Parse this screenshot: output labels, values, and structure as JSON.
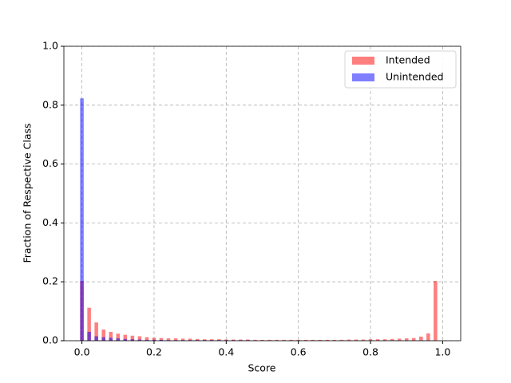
{
  "chart_data": {
    "type": "histogram",
    "xlabel": "Score",
    "ylabel": "Fraction of Respective Class",
    "bins": [
      -0.01,
      0.01,
      0.03,
      0.05,
      0.07,
      0.09,
      0.11,
      0.13,
      0.15,
      0.17,
      0.19,
      0.21,
      0.23,
      0.25,
      0.27,
      0.29,
      0.31,
      0.33,
      0.35,
      0.37,
      0.39,
      0.41,
      0.43,
      0.45,
      0.47,
      0.49,
      0.51,
      0.53,
      0.55,
      0.57,
      0.59,
      0.61,
      0.63,
      0.65,
      0.67,
      0.69,
      0.71,
      0.73,
      0.75,
      0.77,
      0.79,
      0.81,
      0.83,
      0.85,
      0.87,
      0.89,
      0.91,
      0.93,
      0.95,
      0.97,
      0.99
    ],
    "series": [
      {
        "name": "Intended",
        "color": "#ff0000",
        "values": [
          0.203,
          0.112,
          0.062,
          0.038,
          0.03,
          0.024,
          0.02,
          0.017,
          0.015,
          0.012,
          0.01,
          0.009,
          0.008,
          0.008,
          0.007,
          0.007,
          0.006,
          0.005,
          0.005,
          0.005,
          0.004,
          0.004,
          0.004,
          0.004,
          0.003,
          0.003,
          0.003,
          0.003,
          0.003,
          0.003,
          0.003,
          0.003,
          0.003,
          0.003,
          0.003,
          0.003,
          0.003,
          0.004,
          0.004,
          0.004,
          0.005,
          0.005,
          0.005,
          0.006,
          0.007,
          0.008,
          0.009,
          0.014,
          0.025,
          0.203
        ]
      },
      {
        "name": "Unintended",
        "color": "#0000ff",
        "values": [
          0.823,
          0.03,
          0.015,
          0.012,
          0.01,
          0.008,
          0.006,
          0.005,
          0.004,
          0.003,
          0.003,
          0.003,
          0.002,
          0.002,
          0.002,
          0.002,
          0.002,
          0.002,
          0.002,
          0.002,
          0.002,
          0.002,
          0.002,
          0.002,
          0.001,
          0.001,
          0.001,
          0.001,
          0.001,
          0.001,
          0.001,
          0.001,
          0.001,
          0.001,
          0.001,
          0.001,
          0.001,
          0.001,
          0.001,
          0.001,
          0.001,
          0.001,
          0.001,
          0.001,
          0.001,
          0.001,
          0.001,
          0.001,
          0.001,
          0.001
        ]
      }
    ],
    "xlim": [
      -0.05,
      1.05
    ],
    "ylim": [
      0,
      1
    ],
    "xticks": [
      {
        "value": 0,
        "label": "0.0"
      },
      {
        "value": 0.2,
        "label": "0.2"
      },
      {
        "value": 0.4,
        "label": "0.4"
      },
      {
        "value": 0.6,
        "label": "0.6"
      },
      {
        "value": 0.8,
        "label": "0.8"
      },
      {
        "value": 1,
        "label": "1.0"
      }
    ],
    "yticks": [
      {
        "value": 0,
        "label": "0.0"
      },
      {
        "value": 0.2,
        "label": "0.2"
      },
      {
        "value": 0.4,
        "label": "0.4"
      },
      {
        "value": 0.6,
        "label": "0.6"
      },
      {
        "value": 0.8,
        "label": "0.8"
      },
      {
        "value": 1,
        "label": "1.0"
      }
    ],
    "grid": true,
    "legend": "upper right"
  }
}
